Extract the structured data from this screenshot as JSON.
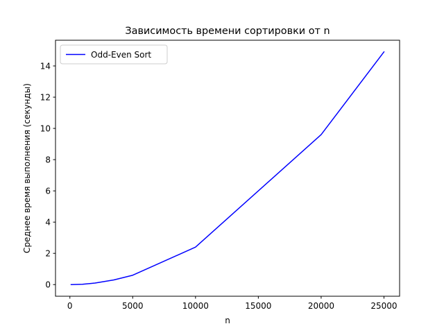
{
  "chart_data": {
    "type": "line",
    "title": "Зависимость времени сортировки от n",
    "xlabel": "n",
    "ylabel": "Среднее время выполнения (секунды)",
    "xlim": [
      -1145,
      26245
    ],
    "ylim": [
      -0.745,
      15.645
    ],
    "xticks": [
      0,
      5000,
      10000,
      15000,
      20000,
      25000
    ],
    "yticks": [
      0,
      2,
      4,
      6,
      8,
      10,
      12,
      14
    ],
    "grid": false,
    "legend_position": "upper-left",
    "series": [
      {
        "name": "Odd-Even Sort",
        "color": "#0000ff",
        "x": [
          100,
          1000,
          2000,
          3500,
          5000,
          10000,
          20000,
          25000
        ],
        "y": [
          0.0,
          0.02,
          0.1,
          0.3,
          0.6,
          2.4,
          9.6,
          14.9
        ]
      }
    ]
  }
}
